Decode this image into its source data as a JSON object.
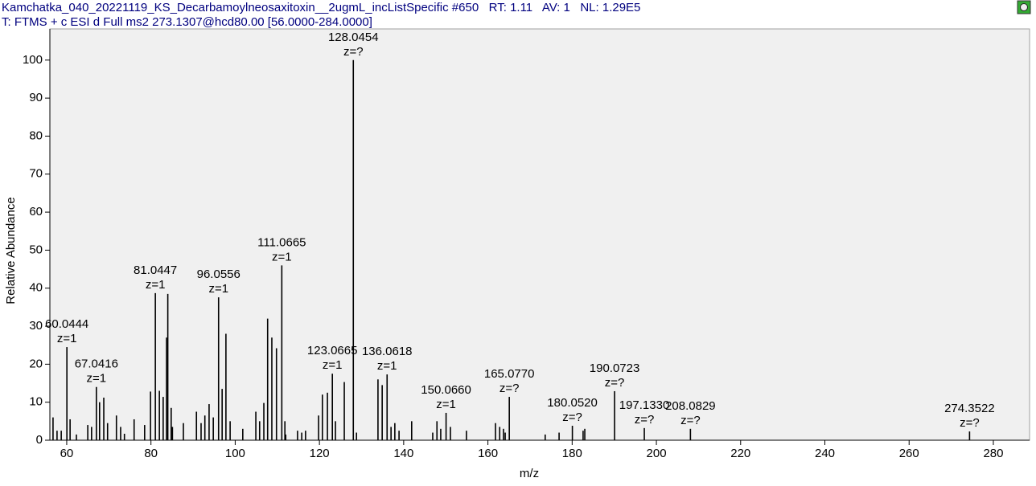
{
  "chart_data": {
    "type": "stick",
    "title": "Kamchatka_040_20221119_KS_Decarbamoylneosaxitoxin__2ugmL_incListSpecific #650   RT: 1.11   AV: 1   NL: 1.29E5",
    "subtitle": "T: FTMS + c ESI d Full ms2 273.1307@hcd80.00 [56.0000-284.0000]",
    "xlabel": "m/z",
    "ylabel": "Relative Abundance",
    "color": "#000000",
    "xlim": [
      56,
      288.6
    ],
    "ylim": [
      0,
      108.2
    ],
    "xticks": [
      60,
      80,
      100,
      120,
      140,
      160,
      180,
      200,
      220,
      240,
      260,
      280
    ],
    "yticks": [
      0,
      10,
      20,
      30,
      40,
      50,
      60,
      70,
      80,
      90,
      100
    ],
    "x": [
      56.75,
      57.7,
      58.7,
      60.0444,
      60.8,
      62.3,
      65.0,
      65.9,
      67.0416,
      67.8,
      68.8,
      69.7,
      71.8,
      72.8,
      73.7,
      76.0,
      78.5,
      79.9,
      81.0447,
      82.0,
      82.9,
      83.7,
      84.0,
      84.8,
      85.1,
      87.7,
      90.8,
      91.9,
      92.8,
      93.8,
      94.8,
      96.0556,
      96.9,
      97.8,
      98.8,
      101.8,
      104.9,
      105.8,
      106.8,
      107.7,
      108.7,
      109.8,
      111.0665,
      111.8,
      112.0,
      114.8,
      115.8,
      116.7,
      119.8,
      120.7,
      121.9,
      123.0665,
      123.8,
      125.9,
      128.0454,
      128.8,
      133.9,
      134.9,
      136.0618,
      137.0,
      137.9,
      138.9,
      141.9,
      146.9,
      147.9,
      148.8,
      {
        "value": 150.066,
        "label": "150.0660"
      },
      151.1,
      154.9,
      161.8,
      162.8,
      163.7,
      164.1,
      {
        "value": 165.077,
        "label": "165.0770"
      },
      173.6,
      176.9,
      {
        "value": 180.052,
        "label": "180.0520"
      },
      182.6,
      183.0,
      190.0723,
      {
        "value": 197.133,
        "label": "197.1330"
      },
      208.0829,
      274.3522
    ],
    "values": [
      6,
      2.5,
      2.5,
      24.5,
      5.5,
      1.5,
      4,
      3.5,
      14,
      10,
      11.2,
      4.5,
      6.5,
      3.5,
      1.7,
      5.5,
      4,
      12.8,
      38.7,
      13,
      11.4,
      27,
      38.5,
      8.5,
      3.5,
      4.5,
      7.5,
      4.5,
      6.5,
      9.5,
      6,
      37.6,
      13.5,
      28,
      5,
      3,
      7.5,
      5,
      9.8,
      32,
      27,
      24.2,
      46,
      5,
      1.5,
      2.5,
      2,
      2.5,
      6.5,
      12,
      12.5,
      17.5,
      5,
      15.3,
      100,
      2,
      16,
      14.5,
      17.3,
      3.5,
      4.5,
      2.5,
      5,
      2,
      5,
      3,
      7.2,
      3.5,
      2.5,
      4.5,
      3.5,
      3,
      2,
      11.4,
      1.5,
      2,
      3.8,
      2.5,
      3,
      12.9,
      3.2,
      3,
      2.3
    ],
    "charge_labels": [
      null,
      null,
      null,
      "z=1",
      null,
      null,
      null,
      null,
      "z=1",
      null,
      null,
      null,
      null,
      null,
      null,
      null,
      null,
      null,
      "z=1",
      null,
      null,
      null,
      null,
      null,
      null,
      null,
      null,
      null,
      null,
      null,
      null,
      "z=1",
      null,
      null,
      null,
      null,
      null,
      null,
      null,
      null,
      null,
      null,
      "z=1",
      null,
      null,
      null,
      null,
      null,
      null,
      null,
      null,
      "z=1",
      null,
      null,
      "z=?",
      null,
      null,
      null,
      "z=1",
      null,
      null,
      null,
      null,
      null,
      null,
      null,
      "z=1",
      null,
      null,
      null,
      null,
      null,
      null,
      "z=?",
      null,
      null,
      "z=?",
      null,
      null,
      "z=?",
      "z=?",
      "z=?",
      "z=?"
    ]
  }
}
